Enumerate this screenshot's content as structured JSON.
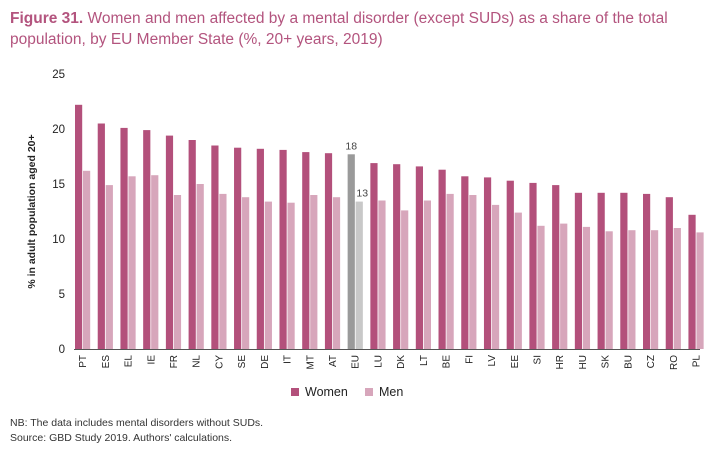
{
  "figure": {
    "label": "Figure 31.",
    "title": "Women and men affected by a mental disorder (except SUDs) as a share of the total population, by EU Member State (%, 20+ years, 2019)"
  },
  "notes": {
    "nb": "NB: The data includes mental disorders without SUDs.",
    "source": "Source: GBD Study 2019. Authors' calculations."
  },
  "colors": {
    "women": "#b3507b",
    "men": "#d7a6bb",
    "eu_women": "#9a9a9a",
    "eu_men": "#c8c8c8",
    "title": "#b3547e"
  },
  "chart_data": {
    "type": "bar",
    "ylabel": "% in adult population aged 20+",
    "ylim": [
      0,
      25
    ],
    "yticks": [
      0,
      5,
      10,
      15,
      20,
      25
    ],
    "grid": false,
    "legend_position": "bottom-center",
    "categories": [
      "PT",
      "ES",
      "EL",
      "IE",
      "FR",
      "NL",
      "CY",
      "SE",
      "DE",
      "IT",
      "MT",
      "AT",
      "EU",
      "LU",
      "DK",
      "LT",
      "BE",
      "FI",
      "LV",
      "EE",
      "SI",
      "HR",
      "HU",
      "SK",
      "BU",
      "CZ",
      "RO",
      "PL"
    ],
    "series": [
      {
        "name": "Women",
        "values": [
          22.2,
          20.5,
          20.1,
          19.9,
          19.4,
          19.0,
          18.5,
          18.3,
          18.2,
          18.1,
          17.9,
          17.8,
          17.7,
          16.9,
          16.8,
          16.6,
          16.3,
          15.7,
          15.6,
          15.3,
          15.1,
          14.9,
          14.2,
          14.2,
          14.2,
          14.1,
          13.8,
          12.2
        ]
      },
      {
        "name": "Men",
        "values": [
          16.2,
          14.9,
          15.7,
          15.8,
          14.0,
          15.0,
          14.1,
          13.8,
          13.4,
          13.3,
          14.0,
          13.8,
          13.4,
          13.5,
          12.6,
          13.5,
          14.1,
          14.0,
          13.1,
          12.4,
          11.2,
          11.4,
          11.1,
          10.7,
          10.8,
          10.8,
          11.0,
          10.6
        ]
      }
    ],
    "annotations": [
      {
        "category": "EU",
        "series": "Women",
        "text": "18"
      },
      {
        "category": "EU",
        "series": "Men",
        "text": "13"
      }
    ],
    "highlight_category": "EU"
  }
}
